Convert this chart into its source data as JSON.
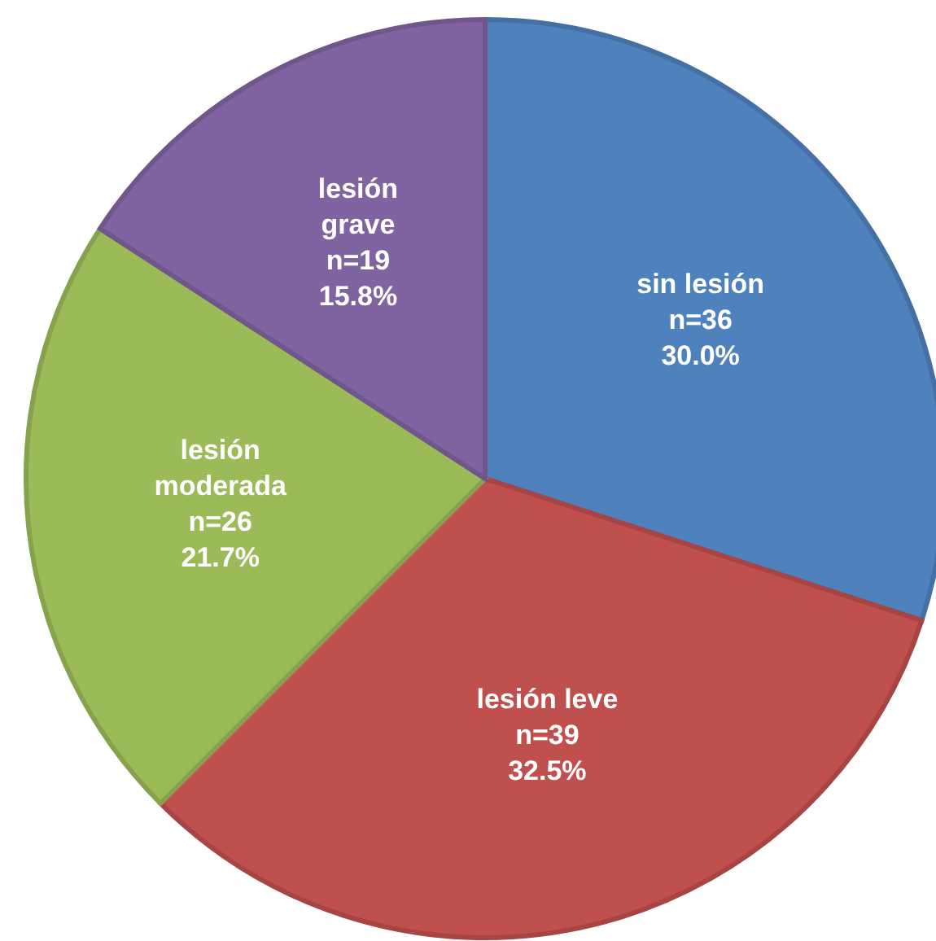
{
  "chart_data": {
    "type": "pie",
    "categories": [
      "sin lesión",
      "lesión leve",
      "lesión moderada",
      "lesión grave"
    ],
    "values": [
      36,
      39,
      26,
      19
    ],
    "value_labels": [
      "n=36 30.0%",
      "n=39 32.5%",
      "n=26 21.7%",
      "n=19 15.8%"
    ],
    "colors": [
      "#4f81bd",
      "#c0504d",
      "#9bbb59",
      "#8064a2"
    ]
  }
}
